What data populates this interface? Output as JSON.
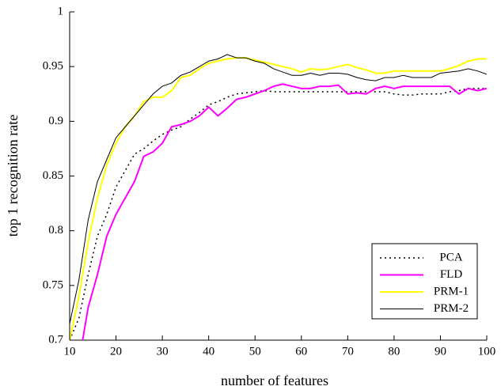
{
  "chart_data": {
    "type": "line",
    "xlabel": "number of features",
    "ylabel": "top 1 recognition rate",
    "x": [
      10,
      12,
      14,
      16,
      18,
      20,
      22,
      24,
      26,
      28,
      30,
      32,
      34,
      36,
      38,
      40,
      42,
      44,
      46,
      48,
      50,
      52,
      54,
      56,
      58,
      60,
      62,
      64,
      66,
      68,
      70,
      72,
      74,
      76,
      78,
      80,
      82,
      84,
      86,
      88,
      90,
      92,
      94,
      96,
      98,
      100
    ],
    "xlim": [
      10,
      100
    ],
    "xticks": [
      10,
      20,
      30,
      40,
      50,
      60,
      70,
      80,
      90,
      100
    ],
    "ylim": [
      0.7,
      1
    ],
    "yticks": [
      0.7,
      0.75,
      0.8,
      0.85,
      0.9,
      0.95,
      1
    ],
    "legend": "lower right",
    "series": [
      {
        "name": "PCA",
        "color": "#000000",
        "linestyle": "dotted",
        "linewidth": 1.5,
        "values": [
          0.7,
          0.72,
          0.76,
          0.795,
          0.815,
          0.84,
          0.855,
          0.87,
          0.875,
          0.882,
          0.888,
          0.892,
          0.895,
          0.902,
          0.908,
          0.915,
          0.918,
          0.922,
          0.925,
          0.926,
          0.927,
          0.928,
          0.927,
          0.927,
          0.927,
          0.927,
          0.927,
          0.927,
          0.927,
          0.927,
          0.927,
          0.927,
          0.927,
          0.927,
          0.927,
          0.925,
          0.924,
          0.924,
          0.925,
          0.925,
          0.925,
          0.927,
          0.928,
          0.93,
          0.93,
          0.93
        ]
      },
      {
        "name": "FLD",
        "color": "#ff00ff",
        "linestyle": "solid",
        "linewidth": 2,
        "values": [
          0.66,
          0.68,
          0.73,
          0.76,
          0.795,
          0.815,
          0.83,
          0.845,
          0.868,
          0.872,
          0.88,
          0.895,
          0.897,
          0.9,
          0.905,
          0.913,
          0.905,
          0.912,
          0.92,
          0.922,
          0.925,
          0.928,
          0.932,
          0.934,
          0.932,
          0.93,
          0.93,
          0.932,
          0.932,
          0.933,
          0.925,
          0.926,
          0.925,
          0.93,
          0.932,
          0.93,
          0.932,
          0.932,
          0.932,
          0.932,
          0.932,
          0.932,
          0.925,
          0.93,
          0.928,
          0.93
        ]
      },
      {
        "name": "PRM-1",
        "color": "#ffff00",
        "linestyle": "solid",
        "linewidth": 2,
        "values": [
          0.7,
          0.74,
          0.79,
          0.83,
          0.86,
          0.88,
          0.895,
          0.905,
          0.918,
          0.922,
          0.922,
          0.928,
          0.94,
          0.942,
          0.948,
          0.953,
          0.955,
          0.957,
          0.958,
          0.958,
          0.956,
          0.954,
          0.952,
          0.95,
          0.948,
          0.945,
          0.948,
          0.947,
          0.948,
          0.95,
          0.952,
          0.949,
          0.947,
          0.944,
          0.944,
          0.946,
          0.946,
          0.946,
          0.946,
          0.946,
          0.946,
          0.948,
          0.951,
          0.955,
          0.957,
          0.957
        ]
      },
      {
        "name": "PRM-2",
        "color": "#000000",
        "linestyle": "solid",
        "linewidth": 1,
        "values": [
          0.715,
          0.755,
          0.81,
          0.845,
          0.865,
          0.885,
          0.895,
          0.905,
          0.915,
          0.925,
          0.932,
          0.935,
          0.942,
          0.945,
          0.95,
          0.955,
          0.957,
          0.961,
          0.958,
          0.958,
          0.955,
          0.953,
          0.948,
          0.945,
          0.942,
          0.942,
          0.944,
          0.942,
          0.944,
          0.944,
          0.943,
          0.94,
          0.938,
          0.937,
          0.94,
          0.94,
          0.942,
          0.94,
          0.94,
          0.94,
          0.944,
          0.945,
          0.946,
          0.948,
          0.946,
          0.943
        ]
      }
    ]
  }
}
